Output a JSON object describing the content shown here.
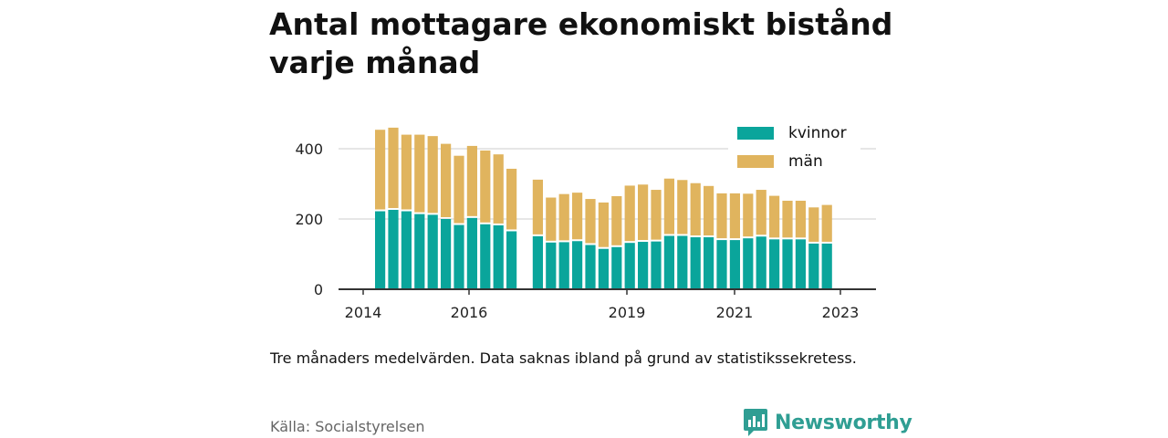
{
  "title": "Antal mottagare ekonomiskt bistånd varje månad",
  "note": "Tre månaders medelvärden. Data saknas ibland på grund av statistikssekretess.",
  "source": "Källa: Socialstyrelsen",
  "brand": "Newsworthy",
  "colors": {
    "kvinnor": "#0aa59b",
    "man": "#e0b45e",
    "grid": "#dddddd",
    "axis": "#333333",
    "brand": "#2f9e93"
  },
  "chart_data": {
    "type": "bar",
    "stacked": true,
    "x_ticks": [
      "2014",
      "2016",
      "2019",
      "2021",
      "2023"
    ],
    "y_ticks": [
      0,
      200,
      400
    ],
    "ylim": [
      0,
      480
    ],
    "legend_position": "top-right",
    "series": [
      {
        "name": "kvinnor",
        "values": [
          222,
          226,
          222,
          214,
          212,
          200,
          183,
          203,
          185,
          182,
          165,
          null,
          151,
          133,
          134,
          137,
          126,
          115,
          120,
          132,
          135,
          136,
          152,
          152,
          148,
          148,
          140,
          140,
          145,
          150,
          142,
          142,
          142,
          130,
          130
        ]
      },
      {
        "name": "män",
        "values": [
          232,
          234,
          218,
          226,
          224,
          214,
          197,
          205,
          210,
          202,
          178,
          null,
          161,
          128,
          137,
          138,
          131,
          132,
          145,
          163,
          163,
          147,
          163,
          159,
          154,
          146,
          133,
          133,
          127,
          133,
          124,
          110,
          110,
          103,
          110
        ]
      }
    ]
  }
}
